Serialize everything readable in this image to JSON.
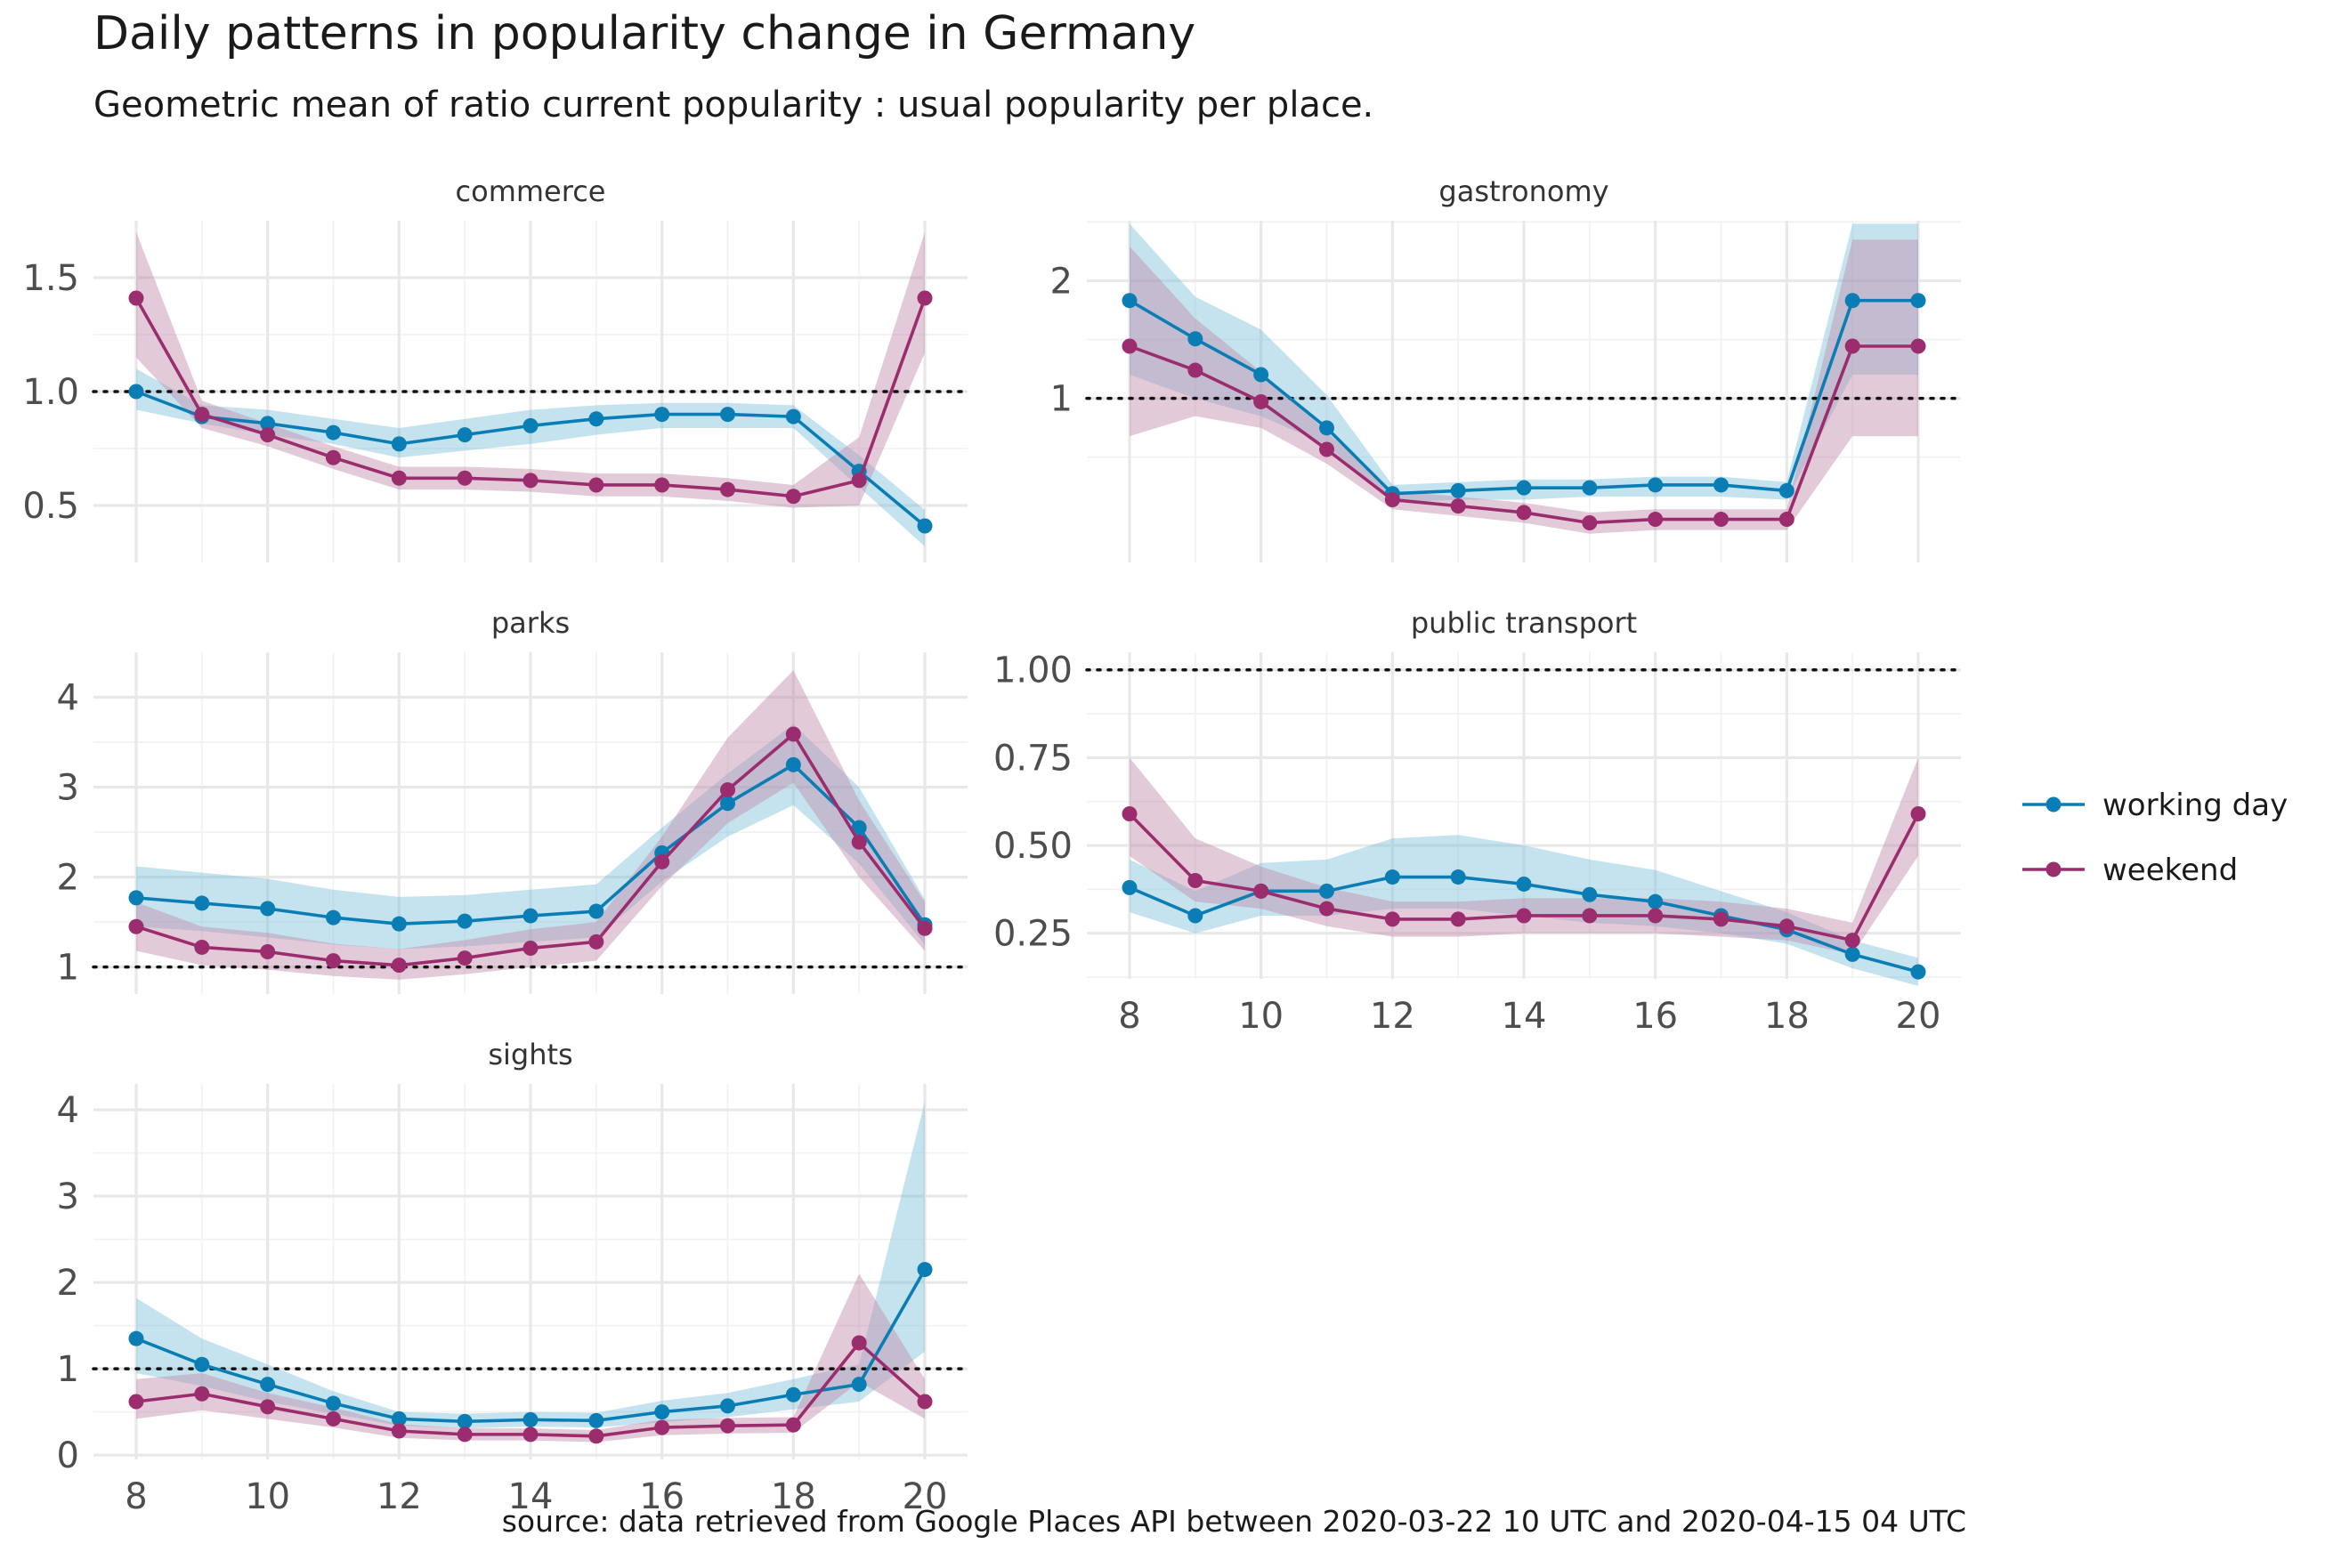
{
  "title": "Daily patterns in popularity change in Germany",
  "subtitle": "Geometric mean of ratio current popularity : usual popularity per place.",
  "caption": "source: data retrieved from Google Places API between 2020-03-22 10 UTC and 2020-04-15 04 UTC",
  "colors": {
    "working_day": "#0a7eb4",
    "weekend": "#9b2d6e",
    "working_day_band": "#7ec1dc",
    "weekend_band": "#c08aa8"
  },
  "legend": [
    {
      "key": "working_day",
      "label": "working day"
    },
    {
      "key": "weekend",
      "label": "weekend"
    }
  ],
  "chart_data": [
    {
      "type": "line",
      "panel": "commerce",
      "x": [
        8,
        9,
        10,
        11,
        12,
        13,
        14,
        15,
        16,
        17,
        18,
        19,
        20
      ],
      "ylim": [
        0.25,
        1.75
      ],
      "yticks": [
        0.5,
        1.0,
        1.5
      ],
      "ytick_labels": [
        "0.5",
        "1.0",
        "1.5"
      ],
      "reference_y": 1.0,
      "xticks": [
        8,
        10,
        12,
        14,
        16,
        18,
        20
      ],
      "show_x_labels": false,
      "series": [
        {
          "name": "working day",
          "values": [
            1.0,
            0.89,
            0.86,
            0.82,
            0.77,
            0.81,
            0.85,
            0.88,
            0.9,
            0.9,
            0.89,
            0.65,
            0.41
          ],
          "lower": [
            0.92,
            0.86,
            0.81,
            0.77,
            0.71,
            0.74,
            0.77,
            0.81,
            0.84,
            0.84,
            0.84,
            0.58,
            0.32
          ],
          "upper": [
            1.1,
            0.94,
            0.92,
            0.88,
            0.84,
            0.88,
            0.92,
            0.94,
            0.95,
            0.95,
            0.94,
            0.72,
            0.48
          ]
        },
        {
          "name": "weekend",
          "values": [
            1.41,
            0.9,
            0.81,
            0.71,
            0.62,
            0.62,
            0.61,
            0.59,
            0.59,
            0.57,
            0.54,
            0.61,
            1.41
          ],
          "lower": [
            1.15,
            0.84,
            0.76,
            0.66,
            0.57,
            0.57,
            0.56,
            0.54,
            0.54,
            0.52,
            0.49,
            0.5,
            1.17
          ],
          "upper": [
            1.7,
            0.96,
            0.86,
            0.76,
            0.67,
            0.67,
            0.66,
            0.64,
            0.64,
            0.62,
            0.59,
            0.8,
            1.7
          ]
        }
      ]
    },
    {
      "type": "line",
      "panel": "gastronomy",
      "x": [
        8,
        9,
        10,
        11,
        12,
        13,
        14,
        15,
        16,
        17,
        18,
        19,
        20
      ],
      "ylim": [
        0.38,
        2.85
      ],
      "yscale": "log",
      "yticks": [
        1,
        2
      ],
      "ytick_labels": [
        "1",
        "2"
      ],
      "reference_y": 1.0,
      "xticks": [
        8,
        10,
        12,
        14,
        16,
        18,
        20
      ],
      "show_x_labels": false,
      "series": [
        {
          "name": "working day",
          "values": [
            1.78,
            1.42,
            1.15,
            0.84,
            0.57,
            0.58,
            0.59,
            0.59,
            0.6,
            0.6,
            0.58,
            1.78,
            1.78
          ],
          "lower": [
            1.15,
            1.0,
            0.9,
            0.76,
            0.54,
            0.55,
            0.55,
            0.56,
            0.56,
            0.56,
            0.55,
            1.15,
            1.15
          ],
          "upper": [
            2.8,
            1.82,
            1.5,
            1.02,
            0.6,
            0.61,
            0.62,
            0.62,
            0.63,
            0.63,
            0.61,
            2.8,
            2.8
          ]
        },
        {
          "name": "weekend",
          "values": [
            1.36,
            1.18,
            0.98,
            0.74,
            0.55,
            0.53,
            0.51,
            0.48,
            0.49,
            0.49,
            0.49,
            1.36,
            1.36
          ],
          "lower": [
            0.8,
            0.9,
            0.84,
            0.68,
            0.52,
            0.5,
            0.48,
            0.45,
            0.46,
            0.46,
            0.46,
            0.8,
            0.8
          ],
          "upper": [
            2.45,
            1.6,
            1.17,
            0.82,
            0.58,
            0.56,
            0.54,
            0.51,
            0.52,
            0.52,
            0.52,
            2.55,
            2.55
          ]
        }
      ]
    },
    {
      "type": "line",
      "panel": "parks",
      "x": [
        8,
        9,
        10,
        11,
        12,
        13,
        14,
        15,
        16,
        17,
        18,
        19,
        20
      ],
      "ylim": [
        0.7,
        4.5
      ],
      "yticks": [
        1,
        2,
        3,
        4
      ],
      "ytick_labels": [
        "1",
        "2",
        "3",
        "4"
      ],
      "reference_y": 1.0,
      "xticks": [
        8,
        10,
        12,
        14,
        16,
        18,
        20
      ],
      "show_x_labels": false,
      "series": [
        {
          "name": "working day",
          "values": [
            1.77,
            1.71,
            1.65,
            1.55,
            1.48,
            1.51,
            1.57,
            1.62,
            2.27,
            2.82,
            3.25,
            2.55,
            1.47
          ],
          "lower": [
            1.45,
            1.4,
            1.33,
            1.25,
            1.2,
            1.23,
            1.28,
            1.33,
            1.95,
            2.45,
            2.8,
            2.15,
            1.25
          ],
          "upper": [
            2.12,
            2.05,
            1.98,
            1.86,
            1.78,
            1.8,
            1.86,
            1.92,
            2.55,
            3.15,
            3.7,
            3.0,
            1.75
          ]
        },
        {
          "name": "weekend",
          "values": [
            1.45,
            1.22,
            1.17,
            1.07,
            1.02,
            1.1,
            1.21,
            1.28,
            2.17,
            2.97,
            3.59,
            2.39,
            1.43
          ],
          "lower": [
            1.18,
            1.02,
            0.97,
            0.9,
            0.86,
            0.92,
            1.0,
            1.07,
            1.9,
            2.6,
            3.05,
            2.0,
            1.18
          ],
          "upper": [
            1.72,
            1.45,
            1.38,
            1.26,
            1.2,
            1.3,
            1.42,
            1.5,
            2.45,
            3.55,
            4.3,
            2.85,
            1.72
          ]
        }
      ]
    },
    {
      "type": "line",
      "panel": "public transport",
      "x": [
        8,
        9,
        10,
        11,
        12,
        13,
        14,
        15,
        16,
        17,
        18,
        19,
        20
      ],
      "ylim": [
        0.12,
        1.05
      ],
      "yticks": [
        0.25,
        0.5,
        0.75,
        1.0
      ],
      "ytick_labels": [
        "0.25",
        "0.50",
        "0.75",
        "1.00"
      ],
      "reference_y": 1.0,
      "xticks": [
        8,
        10,
        12,
        14,
        16,
        18,
        20
      ],
      "show_x_labels": true,
      "series": [
        {
          "name": "working day",
          "values": [
            0.38,
            0.3,
            0.37,
            0.37,
            0.41,
            0.41,
            0.39,
            0.36,
            0.34,
            0.3,
            0.26,
            0.19,
            0.14
          ],
          "lower": [
            0.31,
            0.25,
            0.3,
            0.3,
            0.32,
            0.32,
            0.3,
            0.28,
            0.27,
            0.25,
            0.22,
            0.15,
            0.1
          ],
          "upper": [
            0.46,
            0.37,
            0.45,
            0.46,
            0.52,
            0.53,
            0.5,
            0.46,
            0.43,
            0.37,
            0.31,
            0.23,
            0.18
          ]
        },
        {
          "name": "weekend",
          "values": [
            0.59,
            0.4,
            0.37,
            0.32,
            0.29,
            0.29,
            0.3,
            0.3,
            0.3,
            0.29,
            0.27,
            0.23,
            0.59
          ],
          "lower": [
            0.47,
            0.34,
            0.32,
            0.27,
            0.24,
            0.24,
            0.25,
            0.25,
            0.25,
            0.24,
            0.23,
            0.19,
            0.47
          ],
          "upper": [
            0.75,
            0.52,
            0.44,
            0.38,
            0.34,
            0.34,
            0.35,
            0.35,
            0.35,
            0.34,
            0.32,
            0.28,
            0.75
          ]
        }
      ]
    },
    {
      "type": "line",
      "panel": "sights",
      "x": [
        8,
        9,
        10,
        11,
        12,
        13,
        14,
        15,
        16,
        17,
        18,
        19,
        20
      ],
      "ylim": [
        -0.05,
        4.3
      ],
      "yticks": [
        0,
        1,
        2,
        3,
        4
      ],
      "ytick_labels": [
        "0",
        "1",
        "2",
        "3",
        "4"
      ],
      "reference_y": 1.0,
      "xticks": [
        8,
        10,
        12,
        14,
        16,
        18,
        20
      ],
      "show_x_labels": true,
      "xtick_labels": [
        "8",
        "10",
        "12",
        "14",
        "16",
        "18",
        "20"
      ],
      "series": [
        {
          "name": "working day",
          "values": [
            1.35,
            1.05,
            0.82,
            0.6,
            0.42,
            0.39,
            0.41,
            0.4,
            0.5,
            0.57,
            0.7,
            0.82,
            2.15
          ],
          "lower": [
            0.95,
            0.8,
            0.62,
            0.48,
            0.34,
            0.31,
            0.33,
            0.32,
            0.38,
            0.44,
            0.53,
            0.62,
            1.2
          ],
          "upper": [
            1.82,
            1.35,
            1.05,
            0.74,
            0.5,
            0.48,
            0.5,
            0.49,
            0.63,
            0.72,
            0.88,
            1.05,
            4.1
          ]
        },
        {
          "name": "weekend",
          "values": [
            0.62,
            0.71,
            0.56,
            0.42,
            0.28,
            0.24,
            0.24,
            0.22,
            0.32,
            0.34,
            0.35,
            1.3,
            0.62
          ],
          "lower": [
            0.42,
            0.52,
            0.42,
            0.32,
            0.2,
            0.17,
            0.17,
            0.15,
            0.23,
            0.25,
            0.26,
            0.85,
            0.42
          ],
          "upper": [
            0.88,
            0.95,
            0.72,
            0.55,
            0.36,
            0.31,
            0.31,
            0.29,
            0.41,
            0.43,
            0.44,
            2.1,
            0.88
          ]
        }
      ]
    }
  ]
}
